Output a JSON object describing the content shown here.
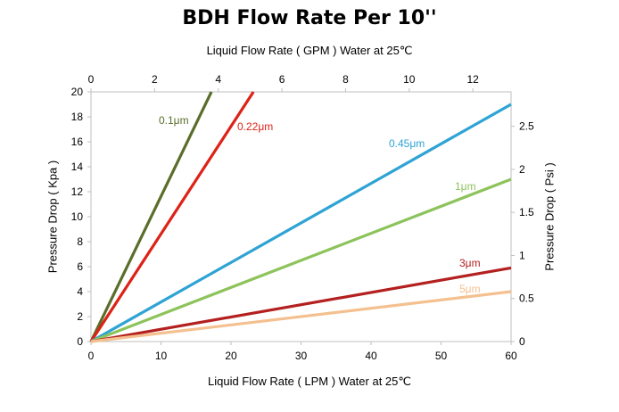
{
  "chart_data": {
    "type": "line",
    "title": "BDH Flow Rate Per 10''",
    "xlabel": "Liquid Flow Rate ( LPM ) Water  at  25℃",
    "x2label": "Liquid Flow Rate ( GPM ) Water  at  25℃",
    "ylabel": "Pressure Drop ( Kpa )",
    "y2label": "Pressure Drop ( Psi )",
    "xlim": [
      0,
      60
    ],
    "ylim": [
      0,
      20
    ],
    "x2lim": [
      0,
      13.2
    ],
    "y2lim": [
      0,
      2.9
    ],
    "xticks": [
      0,
      10,
      20,
      30,
      40,
      50,
      60
    ],
    "yticks": [
      0,
      2,
      4,
      6,
      8,
      10,
      12,
      14,
      16,
      18,
      20
    ],
    "x2ticks": [
      0,
      2,
      4,
      6,
      8,
      10,
      12
    ],
    "y2ticks": [
      0,
      0.5,
      1,
      1.5,
      2,
      2.5
    ],
    "x2ticklabels": [
      "0",
      "2",
      "4",
      "6",
      "8",
      "10",
      "12"
    ],
    "y2ticklabels": [
      "0",
      "0.5",
      "1",
      "1.5",
      "2",
      "2.5"
    ],
    "grid": false,
    "legend": "inline labels",
    "series": [
      {
        "name": "0.1μm",
        "color": "#5a6e2a",
        "x": [
          0,
          17.2
        ],
        "y": [
          0,
          20
        ]
      },
      {
        "name": "0.22μm",
        "color": "#dd2217",
        "x": [
          0,
          23.2
        ],
        "y": [
          0,
          20
        ]
      },
      {
        "name": "0.45μm",
        "color": "#2ea3d4",
        "x": [
          0,
          60
        ],
        "y": [
          0,
          19
        ]
      },
      {
        "name": "1μm",
        "color": "#8dc35b",
        "x": [
          0,
          60
        ],
        "y": [
          0,
          13
        ]
      },
      {
        "name": "3μm",
        "color": "#b3201f",
        "x": [
          0,
          60
        ],
        "y": [
          0,
          5.9
        ]
      },
      {
        "name": "5μm",
        "color": "#f4c08f",
        "x": [
          0,
          60
        ],
        "y": [
          0,
          4
        ]
      }
    ]
  }
}
